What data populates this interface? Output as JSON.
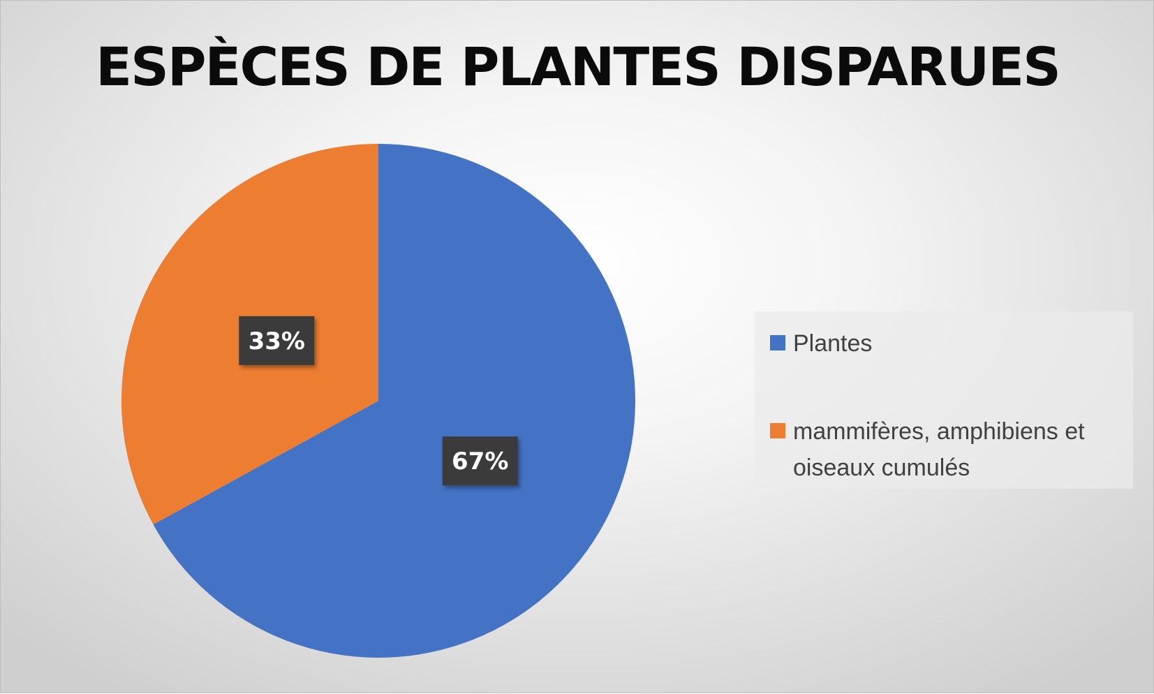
{
  "chart_data": {
    "type": "pie",
    "title": "ESPÈCES DE PLANTES DISPARUES",
    "categories": [
      "Plantes",
      "mammifères, amphibiens et oiseaux cumulés"
    ],
    "values": [
      67,
      33
    ],
    "data_labels": [
      "67%",
      "33%"
    ],
    "colors": [
      "#4472c4",
      "#ed7d31"
    ],
    "legend_position": "right"
  }
}
